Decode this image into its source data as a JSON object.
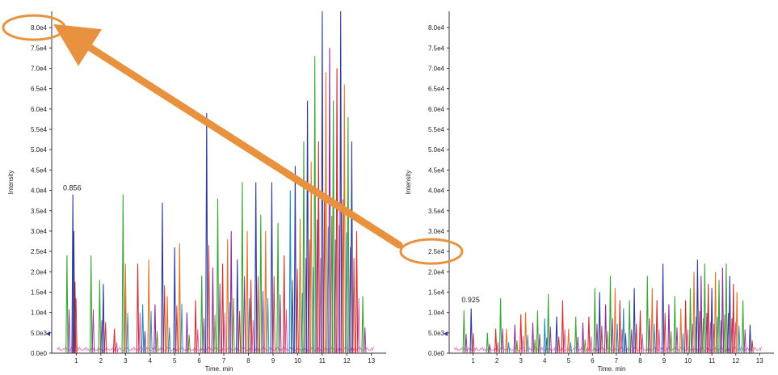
{
  "colors": {
    "axis": "#333333",
    "highlight": "#e8913e",
    "series": [
      "#2e3a9a",
      "#39a535",
      "#e0762a",
      "#cc2f2f",
      "#8c2f9a",
      "#1f8fbf",
      "#d94fa5",
      "#6b8e23"
    ]
  },
  "chart_data": [
    {
      "type": "line",
      "xlabel": "Time, min",
      "ylabel": "Intensity",
      "xlim": [
        0,
        13.6
      ],
      "ylim": [
        0,
        84000
      ],
      "xticks": [
        "1",
        "2",
        "3",
        "4",
        "5",
        "6",
        "7",
        "8",
        "9",
        "10",
        "11",
        "12",
        "13"
      ],
      "yticks": [
        "0.0e0",
        "5.0e3",
        "1.0e4",
        "1.5e4",
        "2.0e4",
        "2.5e4",
        "3.0e4",
        "3.5e4",
        "4.0e4",
        "4.5e4",
        "5.0e4",
        "5.5e4",
        "6.0e4",
        "6.5e4",
        "7.0e4",
        "7.5e4",
        "8.0e4"
      ],
      "peak_label": {
        "text": "0.856",
        "x": 0.856,
        "y": 39000
      },
      "highlighted_tick": "8.0e4",
      "peaks": [
        [
          0.62,
          24000,
          1
        ],
        [
          0.86,
          39000,
          0
        ],
        [
          0.9,
          30000,
          0
        ],
        [
          1.6,
          24000,
          1
        ],
        [
          1.95,
          18000,
          1
        ],
        [
          2.1,
          17000,
          0
        ],
        [
          2.55,
          6000,
          3
        ],
        [
          2.9,
          39000,
          1
        ],
        [
          3.0,
          22000,
          2
        ],
        [
          3.5,
          22000,
          3
        ],
        [
          3.7,
          12000,
          5
        ],
        [
          3.95,
          23000,
          2
        ],
        [
          4.2,
          12000,
          4
        ],
        [
          4.5,
          37000,
          0
        ],
        [
          4.7,
          14000,
          2
        ],
        [
          5.0,
          26000,
          0
        ],
        [
          5.2,
          27000,
          2
        ],
        [
          5.5,
          10000,
          4
        ],
        [
          5.85,
          13000,
          3
        ],
        [
          6.1,
          19000,
          1
        ],
        [
          6.3,
          59000,
          0
        ],
        [
          6.55,
          21000,
          4
        ],
        [
          6.75,
          38000,
          1
        ],
        [
          6.95,
          22000,
          3
        ],
        [
          7.15,
          28000,
          2
        ],
        [
          7.3,
          30000,
          4
        ],
        [
          7.55,
          23000,
          0
        ],
        [
          7.75,
          42000,
          1
        ],
        [
          7.95,
          30000,
          2
        ],
        [
          8.1,
          18000,
          3
        ],
        [
          8.3,
          42000,
          0
        ],
        [
          8.5,
          34000,
          1
        ],
        [
          8.7,
          30000,
          2
        ],
        [
          8.95,
          42000,
          0
        ],
        [
          9.2,
          32000,
          1
        ],
        [
          9.45,
          24000,
          3
        ],
        [
          9.7,
          40000,
          5
        ],
        [
          9.9,
          46000,
          0
        ],
        [
          10.1,
          33000,
          2
        ],
        [
          10.25,
          52000,
          1
        ],
        [
          10.4,
          62000,
          0
        ],
        [
          10.55,
          47000,
          2
        ],
        [
          10.7,
          73000,
          1
        ],
        [
          10.85,
          52000,
          3
        ],
        [
          11.0,
          84000,
          0
        ],
        [
          11.15,
          69000,
          2
        ],
        [
          11.3,
          75000,
          4
        ],
        [
          11.45,
          62000,
          1
        ],
        [
          11.6,
          70000,
          3
        ],
        [
          11.75,
          84000,
          0
        ],
        [
          11.9,
          66000,
          2
        ],
        [
          12.05,
          58000,
          1
        ],
        [
          12.2,
          52000,
          0
        ],
        [
          12.4,
          30000,
          3
        ],
        [
          12.65,
          14000,
          1
        ]
      ]
    },
    {
      "type": "line",
      "xlabel": "Time, min",
      "ylabel": "Intensity",
      "xlim": [
        0,
        13.6
      ],
      "ylim": [
        0,
        84000
      ],
      "xticks": [
        "1",
        "2",
        "3",
        "4",
        "5",
        "6",
        "7",
        "8",
        "9",
        "10",
        "11",
        "12",
        "13"
      ],
      "yticks": [
        "0.0e0",
        "5.0e3",
        "1.0e4",
        "1.5e4",
        "2.0e4",
        "2.5e4",
        "3.0e4",
        "3.5e4",
        "4.0e4",
        "4.5e4",
        "5.0e4",
        "5.5e4",
        "6.0e4",
        "6.5e4",
        "7.0e4",
        "7.5e4",
        "8.0e4"
      ],
      "peak_label": {
        "text": "0.925",
        "x": 0.925,
        "y": 11500
      },
      "highlighted_tick": "2.5e4",
      "peaks": [
        [
          0.62,
          10500,
          1
        ],
        [
          0.92,
          11000,
          0
        ],
        [
          1.6,
          5000,
          1
        ],
        [
          1.95,
          6000,
          3
        ],
        [
          2.15,
          13500,
          1
        ],
        [
          2.4,
          6000,
          2
        ],
        [
          2.75,
          7000,
          4
        ],
        [
          3.0,
          9500,
          3
        ],
        [
          3.2,
          10000,
          2
        ],
        [
          3.5,
          7500,
          4
        ],
        [
          3.7,
          10500,
          1
        ],
        [
          4.0,
          8500,
          5
        ],
        [
          4.15,
          14500,
          1
        ],
        [
          4.5,
          9000,
          0
        ],
        [
          4.75,
          13000,
          3
        ],
        [
          5.0,
          6000,
          2
        ],
        [
          5.3,
          9000,
          1
        ],
        [
          5.6,
          7500,
          4
        ],
        [
          5.85,
          9000,
          3
        ],
        [
          6.1,
          16000,
          1
        ],
        [
          6.3,
          15000,
          0
        ],
        [
          6.55,
          12000,
          4
        ],
        [
          6.75,
          19000,
          1
        ],
        [
          6.95,
          16000,
          2
        ],
        [
          7.15,
          13000,
          3
        ],
        [
          7.3,
          11000,
          5
        ],
        [
          7.55,
          13000,
          1
        ],
        [
          7.75,
          16000,
          0
        ],
        [
          8.0,
          10500,
          3
        ],
        [
          8.3,
          19000,
          1
        ],
        [
          8.5,
          16000,
          2
        ],
        [
          8.7,
          13000,
          3
        ],
        [
          8.95,
          22000,
          0
        ],
        [
          9.2,
          12000,
          4
        ],
        [
          9.45,
          14000,
          1
        ],
        [
          9.7,
          11000,
          2
        ],
        [
          9.9,
          13000,
          3
        ],
        [
          10.1,
          16000,
          1
        ],
        [
          10.25,
          20000,
          2
        ],
        [
          10.4,
          23000,
          0
        ],
        [
          10.55,
          19000,
          4
        ],
        [
          10.7,
          22000,
          1
        ],
        [
          10.85,
          17000,
          3
        ],
        [
          11.0,
          16000,
          0
        ],
        [
          11.15,
          20000,
          2
        ],
        [
          11.3,
          18000,
          1
        ],
        [
          11.45,
          21000,
          4
        ],
        [
          11.6,
          22000,
          1
        ],
        [
          11.75,
          19000,
          0
        ],
        [
          11.9,
          17000,
          3
        ],
        [
          12.05,
          15000,
          2
        ],
        [
          12.3,
          13000,
          1
        ],
        [
          12.6,
          7000,
          0
        ]
      ]
    }
  ]
}
